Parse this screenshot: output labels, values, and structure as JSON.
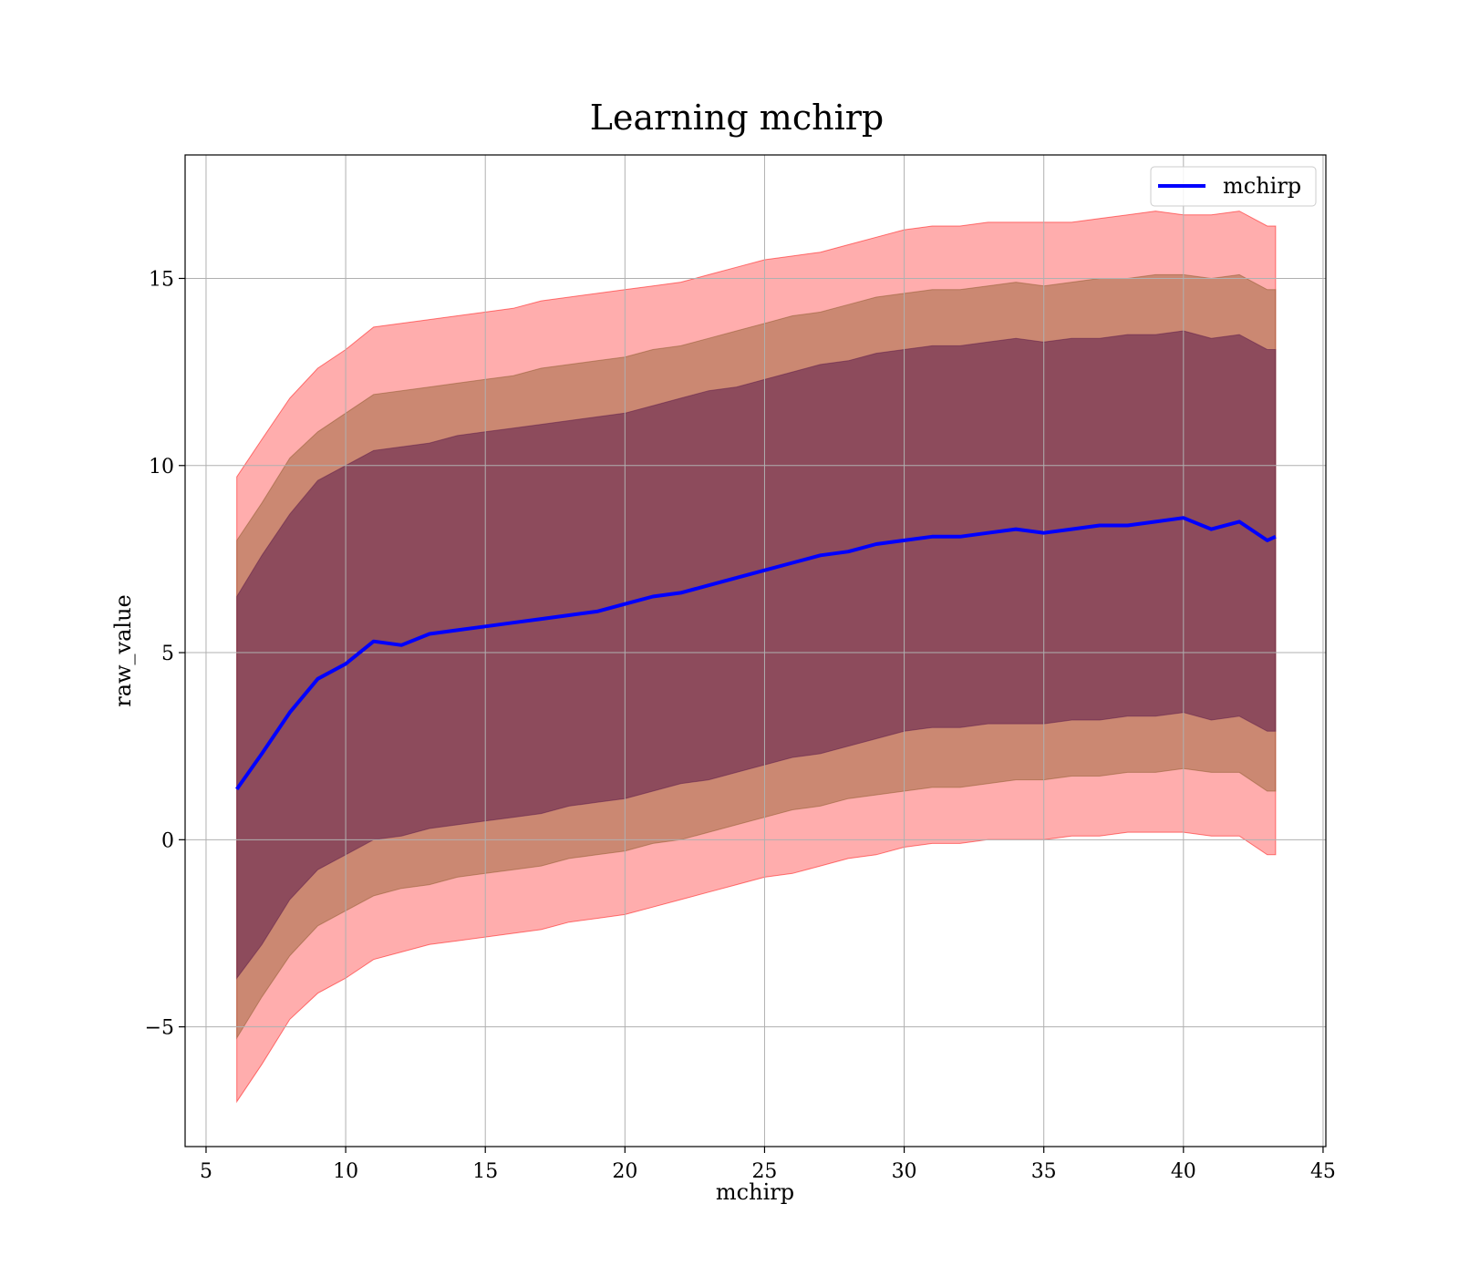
{
  "chart_data": {
    "type": "area",
    "title": "Learning mchirp",
    "xlabel": "mchirp",
    "ylabel": "raw_value",
    "xlim": [
      4.25,
      45.1
    ],
    "ylim": [
      -8.2,
      18.3
    ],
    "x_ticks": [
      5,
      10,
      15,
      20,
      25,
      30,
      35,
      40,
      45
    ],
    "x_tick_labels": [
      "5",
      "10",
      "15",
      "20",
      "25",
      "30",
      "35",
      "40",
      "45"
    ],
    "y_ticks": [
      -5,
      0,
      5,
      10,
      15
    ],
    "y_tick_labels": [
      "−5",
      "0",
      "5",
      "10",
      "15"
    ],
    "grid": true,
    "legend": {
      "position": "top-right",
      "entries": [
        "mchirp"
      ]
    },
    "colors": {
      "line": "#0000ff",
      "band_outer": "#ff0000",
      "band_middle": "#8b5a2b",
      "band_inner": "#5b1a4a",
      "grid": "#b0b0b0"
    },
    "x": [
      6.1,
      7,
      8,
      9,
      10,
      11,
      12,
      13,
      14,
      15,
      16,
      17,
      18,
      19,
      20,
      21,
      22,
      23,
      24,
      25,
      26,
      27,
      28,
      29,
      30,
      31,
      32,
      33,
      34,
      35,
      36,
      37,
      38,
      39,
      40,
      41,
      42,
      43,
      43.3
    ],
    "series": [
      {
        "name": "mchirp",
        "values": [
          1.35,
          2.3,
          3.4,
          4.3,
          4.7,
          5.3,
          5.2,
          5.5,
          5.6,
          5.7,
          5.8,
          5.9,
          6.0,
          6.1,
          6.3,
          6.5,
          6.6,
          6.8,
          7.0,
          7.2,
          7.4,
          7.6,
          7.7,
          7.9,
          8.0,
          8.1,
          8.1,
          8.2,
          8.3,
          8.2,
          8.3,
          8.4,
          8.4,
          8.5,
          8.6,
          8.3,
          8.5,
          8.0,
          8.1
        ]
      }
    ],
    "bands": [
      {
        "level": "outer",
        "upper": [
          9.7,
          10.7,
          11.8,
          12.6,
          13.1,
          13.7,
          13.8,
          13.9,
          14.0,
          14.1,
          14.2,
          14.4,
          14.5,
          14.6,
          14.7,
          14.8,
          14.9,
          15.1,
          15.3,
          15.5,
          15.6,
          15.7,
          15.9,
          16.1,
          16.3,
          16.4,
          16.4,
          16.5,
          16.5,
          16.5,
          16.5,
          16.6,
          16.7,
          16.8,
          16.7,
          16.7,
          16.8,
          16.4,
          16.4
        ],
        "lower": [
          -7.0,
          -6.0,
          -4.8,
          -4.1,
          -3.7,
          -3.2,
          -3.0,
          -2.8,
          -2.7,
          -2.6,
          -2.5,
          -2.4,
          -2.2,
          -2.1,
          -2.0,
          -1.8,
          -1.6,
          -1.4,
          -1.2,
          -1.0,
          -0.9,
          -0.7,
          -0.5,
          -0.4,
          -0.2,
          -0.1,
          -0.1,
          0.0,
          0.0,
          0.0,
          0.1,
          0.1,
          0.2,
          0.2,
          0.2,
          0.1,
          0.1,
          -0.4,
          -0.4
        ]
      },
      {
        "level": "middle",
        "upper": [
          8.0,
          9.0,
          10.2,
          10.9,
          11.4,
          11.9,
          12.0,
          12.1,
          12.2,
          12.3,
          12.4,
          12.6,
          12.7,
          12.8,
          12.9,
          13.1,
          13.2,
          13.4,
          13.6,
          13.8,
          14.0,
          14.1,
          14.3,
          14.5,
          14.6,
          14.7,
          14.7,
          14.8,
          14.9,
          14.8,
          14.9,
          15.0,
          15.0,
          15.1,
          15.1,
          15.0,
          15.1,
          14.7,
          14.7
        ],
        "lower": [
          -5.3,
          -4.2,
          -3.1,
          -2.3,
          -1.9,
          -1.5,
          -1.3,
          -1.2,
          -1.0,
          -0.9,
          -0.8,
          -0.7,
          -0.5,
          -0.4,
          -0.3,
          -0.1,
          0.0,
          0.2,
          0.4,
          0.6,
          0.8,
          0.9,
          1.1,
          1.2,
          1.3,
          1.4,
          1.4,
          1.5,
          1.6,
          1.6,
          1.7,
          1.7,
          1.8,
          1.8,
          1.9,
          1.8,
          1.8,
          1.3,
          1.3
        ]
      },
      {
        "level": "inner",
        "upper": [
          6.5,
          7.6,
          8.7,
          9.6,
          10.0,
          10.4,
          10.5,
          10.6,
          10.8,
          10.9,
          11.0,
          11.1,
          11.2,
          11.3,
          11.4,
          11.6,
          11.8,
          12.0,
          12.1,
          12.3,
          12.5,
          12.7,
          12.8,
          13.0,
          13.1,
          13.2,
          13.2,
          13.3,
          13.4,
          13.3,
          13.4,
          13.4,
          13.5,
          13.5,
          13.6,
          13.4,
          13.5,
          13.1,
          13.1
        ],
        "lower": [
          -3.7,
          -2.8,
          -1.6,
          -0.8,
          -0.4,
          0.0,
          0.1,
          0.3,
          0.4,
          0.5,
          0.6,
          0.7,
          0.9,
          1.0,
          1.1,
          1.3,
          1.5,
          1.6,
          1.8,
          2.0,
          2.2,
          2.3,
          2.5,
          2.7,
          2.9,
          3.0,
          3.0,
          3.1,
          3.1,
          3.1,
          3.2,
          3.2,
          3.3,
          3.3,
          3.4,
          3.2,
          3.3,
          2.9,
          2.9
        ]
      }
    ]
  }
}
